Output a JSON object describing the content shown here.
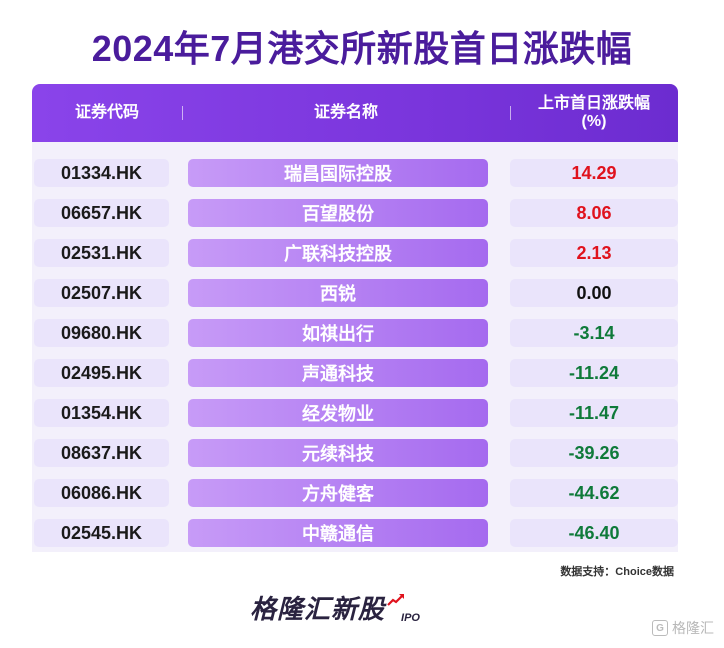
{
  "title": "2024年7月港交所新股首日涨跌幅",
  "table": {
    "headers": {
      "code": "证券代码",
      "name": "证券名称",
      "change_line1": "上市首日涨跌幅",
      "change_line2": "(%)"
    },
    "rows": [
      {
        "code": "01334.HK",
        "name": "瑞昌国际控股",
        "change": "14.29"
      },
      {
        "code": "06657.HK",
        "name": "百望股份",
        "change": "8.06"
      },
      {
        "code": "02531.HK",
        "name": "广联科技控股",
        "change": "2.13"
      },
      {
        "code": "02507.HK",
        "name": "西锐",
        "change": "0.00"
      },
      {
        "code": "09680.HK",
        "name": "如祺出行",
        "change": "-3.14"
      },
      {
        "code": "02495.HK",
        "name": "声通科技",
        "change": "-11.24"
      },
      {
        "code": "01354.HK",
        "name": "经发物业",
        "change": "-11.47"
      },
      {
        "code": "08637.HK",
        "name": "元续科技",
        "change": "-39.26"
      },
      {
        "code": "06086.HK",
        "name": "方舟健客",
        "change": "-44.62"
      },
      {
        "code": "02545.HK",
        "name": "中赣通信",
        "change": "-46.40"
      }
    ]
  },
  "source": "数据支持：Choice数据",
  "brand": {
    "name": "格隆汇新股",
    "suffix": "IPO",
    "icon": "rising-arrow-icon"
  },
  "watermark": {
    "text": "格隆汇",
    "icon": "brand-logo-icon"
  },
  "colors": {
    "title": "#4a1c9c",
    "header": "#7a35dc",
    "positive": "#e0121d",
    "negative": "#0f7a3a"
  }
}
